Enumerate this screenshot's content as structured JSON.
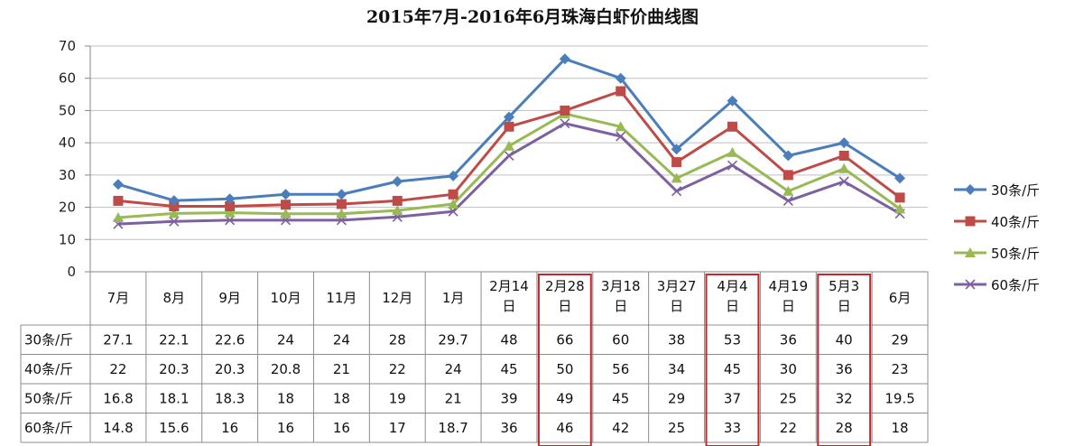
{
  "chart_data": {
    "type": "line",
    "title": "2015年7月-2016年6月珠海白虾价曲线图",
    "categories": [
      "7月",
      "8月",
      "9月",
      "10月",
      "11月",
      "12月",
      "1月",
      "2月14日",
      "2月28日",
      "3月18日",
      "3月27日",
      "4月4日",
      "4月19日",
      "5月3日",
      "6月"
    ],
    "ylim": [
      0,
      70
    ],
    "yticks": [
      0,
      10,
      20,
      30,
      40,
      50,
      60,
      70
    ],
    "grid": true,
    "legend_position": "right",
    "highlighted_categories": [
      "2月28日",
      "4月4日",
      "5月3日"
    ],
    "series": [
      {
        "name": "30条/斤",
        "color": "#4A7EBB",
        "marker": "diamond",
        "values": [
          27.1,
          22.1,
          22.6,
          24,
          24,
          28,
          29.7,
          48,
          66,
          60,
          38,
          53,
          36,
          40,
          29
        ],
        "labels": [
          "27.1",
          "22.1",
          "22.6",
          "24",
          "24",
          "28",
          "29.7",
          "48",
          "66",
          "60",
          "38",
          "53",
          "36",
          "40",
          "29"
        ]
      },
      {
        "name": "40条/斤",
        "color": "#BE4B48",
        "marker": "square",
        "values": [
          22,
          20.3,
          20.3,
          20.8,
          21,
          22,
          24,
          45,
          50,
          56,
          34,
          45,
          30,
          36,
          23
        ],
        "labels": [
          "22",
          "20.3",
          "20.3",
          "20.8",
          "21",
          "22",
          "24",
          "45",
          "50",
          "56",
          "34",
          "45",
          "30",
          "36",
          "23"
        ]
      },
      {
        "name": "50条/斤",
        "color": "#98B954",
        "marker": "triangle",
        "values": [
          16.8,
          18.1,
          18.3,
          18,
          18,
          19,
          21,
          39,
          49,
          45,
          29,
          37,
          25,
          32,
          19.5
        ],
        "labels": [
          "16.8",
          "18.1",
          "18.3",
          "18",
          "18",
          "19",
          "21",
          "39",
          "49",
          "45",
          "29",
          "37",
          "25",
          "32",
          "19.5"
        ]
      },
      {
        "name": "60条/斤",
        "color": "#7D60A0",
        "marker": "x",
        "values": [
          14.8,
          15.6,
          16,
          16,
          16,
          17,
          18.7,
          36,
          46,
          42,
          25,
          33,
          22,
          28,
          18
        ],
        "labels": [
          "14.8",
          "15.6",
          "16",
          "16",
          "16",
          "17",
          "18.7",
          "36",
          "46",
          "42",
          "25",
          "33",
          "22",
          "28",
          "18"
        ]
      }
    ]
  }
}
